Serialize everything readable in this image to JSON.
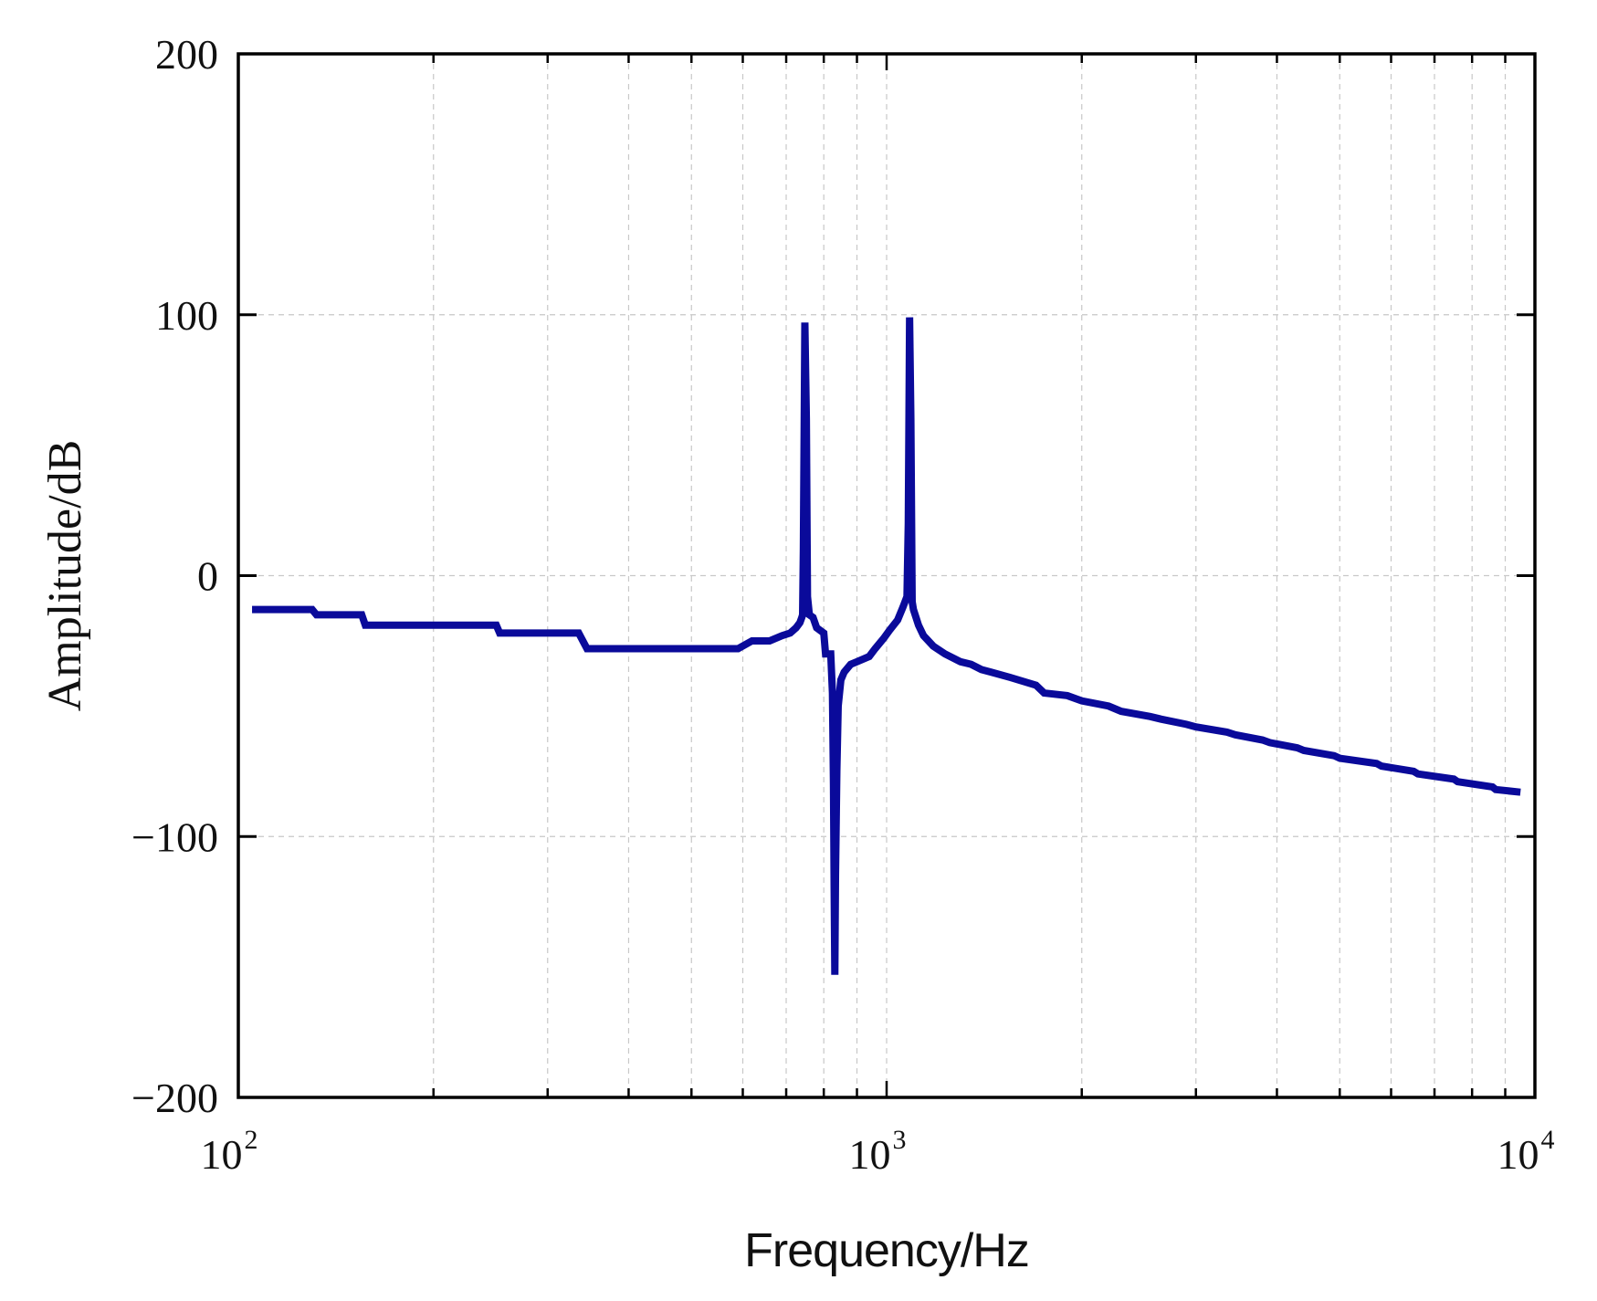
{
  "chart_data": {
    "type": "line",
    "title": "",
    "xlabel": "Frequency/Hz",
    "ylabel": "Amplitude/dB",
    "x_scale": "log",
    "xlim": [
      100,
      10000
    ],
    "ylim": [
      -200,
      200
    ],
    "x_ticks": [
      {
        "base": "10",
        "exp": "2",
        "value": 100
      },
      {
        "base": "10",
        "exp": "3",
        "value": 1000
      },
      {
        "base": "10",
        "exp": "4",
        "value": 10000
      }
    ],
    "y_ticks": [
      {
        "label": "200",
        "value": 200
      },
      {
        "label": "100",
        "value": 100
      },
      {
        "label": "0",
        "value": 0
      },
      {
        "label": "−100",
        "value": -100
      },
      {
        "label": "−200",
        "value": -200
      }
    ],
    "grid": true,
    "line_color": "#0a0a9a",
    "series": [
      {
        "x": [
          105,
          130,
          132,
          155,
          157,
          250,
          253,
          335,
          345,
          590,
          620,
          660,
          690,
          710,
          725,
          735,
          740,
          742,
          744,
          748,
          752,
          755,
          760,
          770,
          780,
          800,
          805,
          820,
          825,
          828,
          830,
          832,
          834,
          838,
          842,
          850,
          860,
          880,
          900,
          940,
          960,
          990,
          1010,
          1040,
          1060,
          1075,
          1080,
          1085,
          1090,
          1095,
          1100,
          1110,
          1120,
          1140,
          1180,
          1230,
          1300,
          1350,
          1400,
          1450,
          1550,
          1700,
          1750,
          1900,
          2000,
          2200,
          2300,
          2550,
          2650,
          2900,
          3000,
          3350,
          3450,
          3800,
          3900,
          4300,
          4400,
          4900,
          5000,
          5700,
          5800,
          6500,
          6600,
          7500,
          7600,
          8600,
          8700,
          9500
        ],
        "y": [
          -13,
          -13,
          -15,
          -15,
          -19,
          -19,
          -22,
          -22,
          -28,
          -28,
          -25,
          -25,
          -23,
          -22,
          -20,
          -18,
          -16,
          -15,
          10,
          97,
          60,
          -8,
          -15,
          -16,
          -20,
          -22,
          -30,
          -30,
          -45,
          -80,
          -120,
          -153,
          -115,
          -75,
          -50,
          -40,
          -37,
          -34,
          -33,
          -31,
          -28,
          -24,
          -21,
          -17,
          -12,
          -8,
          20,
          99,
          60,
          -10,
          -13,
          -16,
          -19,
          -23,
          -27,
          -30,
          -33,
          -34,
          -36,
          -37,
          -39,
          -42,
          -45,
          -46,
          -48,
          -50,
          -52,
          -54,
          -55,
          -57,
          -58,
          -60,
          -61,
          -63,
          -64,
          -66,
          -67,
          -69,
          -70,
          -72,
          -73,
          -75,
          -76,
          -78,
          -79,
          -81,
          -82,
          -83
        ]
      }
    ]
  }
}
